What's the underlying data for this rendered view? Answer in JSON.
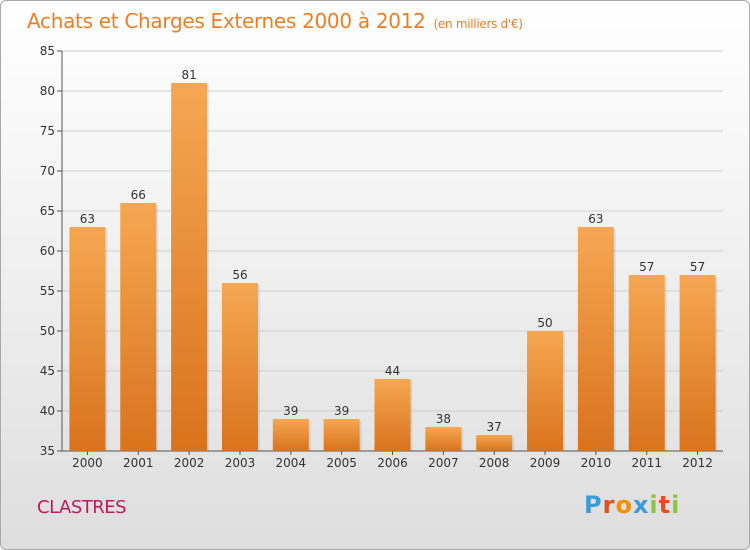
{
  "title": "Achats et Charges Externes 2000 à 2012",
  "subtitle": "(en milliers d'€)",
  "commune": "CLASTRES",
  "brand": {
    "letters": [
      "P",
      "r",
      "o",
      "x",
      "i",
      "t",
      "i"
    ],
    "colors": [
      "#3a9bd9",
      "#e84e1b",
      "#f29100",
      "#3a9bd9",
      "#8cc63f",
      "#e84e1b",
      "#8cc63f"
    ]
  },
  "colors": {
    "bar_top": "#f6a752",
    "bar_bottom": "#d9731c",
    "label": "#333333",
    "accent": "#ee7e22"
  },
  "chart_data": {
    "type": "bar",
    "categories": [
      "2000",
      "2001",
      "2002",
      "2003",
      "2004",
      "2005",
      "2006",
      "2007",
      "2008",
      "2009",
      "2010",
      "2011",
      "2012"
    ],
    "values": [
      63,
      66,
      81,
      56,
      39,
      39,
      44,
      38,
      37,
      50,
      63,
      57,
      57
    ],
    "ylim": [
      35,
      85
    ],
    "yticks": [
      35,
      40,
      45,
      50,
      55,
      60,
      65,
      70,
      75,
      80,
      85
    ],
    "grid": true,
    "xlabel": "",
    "ylabel": ""
  }
}
